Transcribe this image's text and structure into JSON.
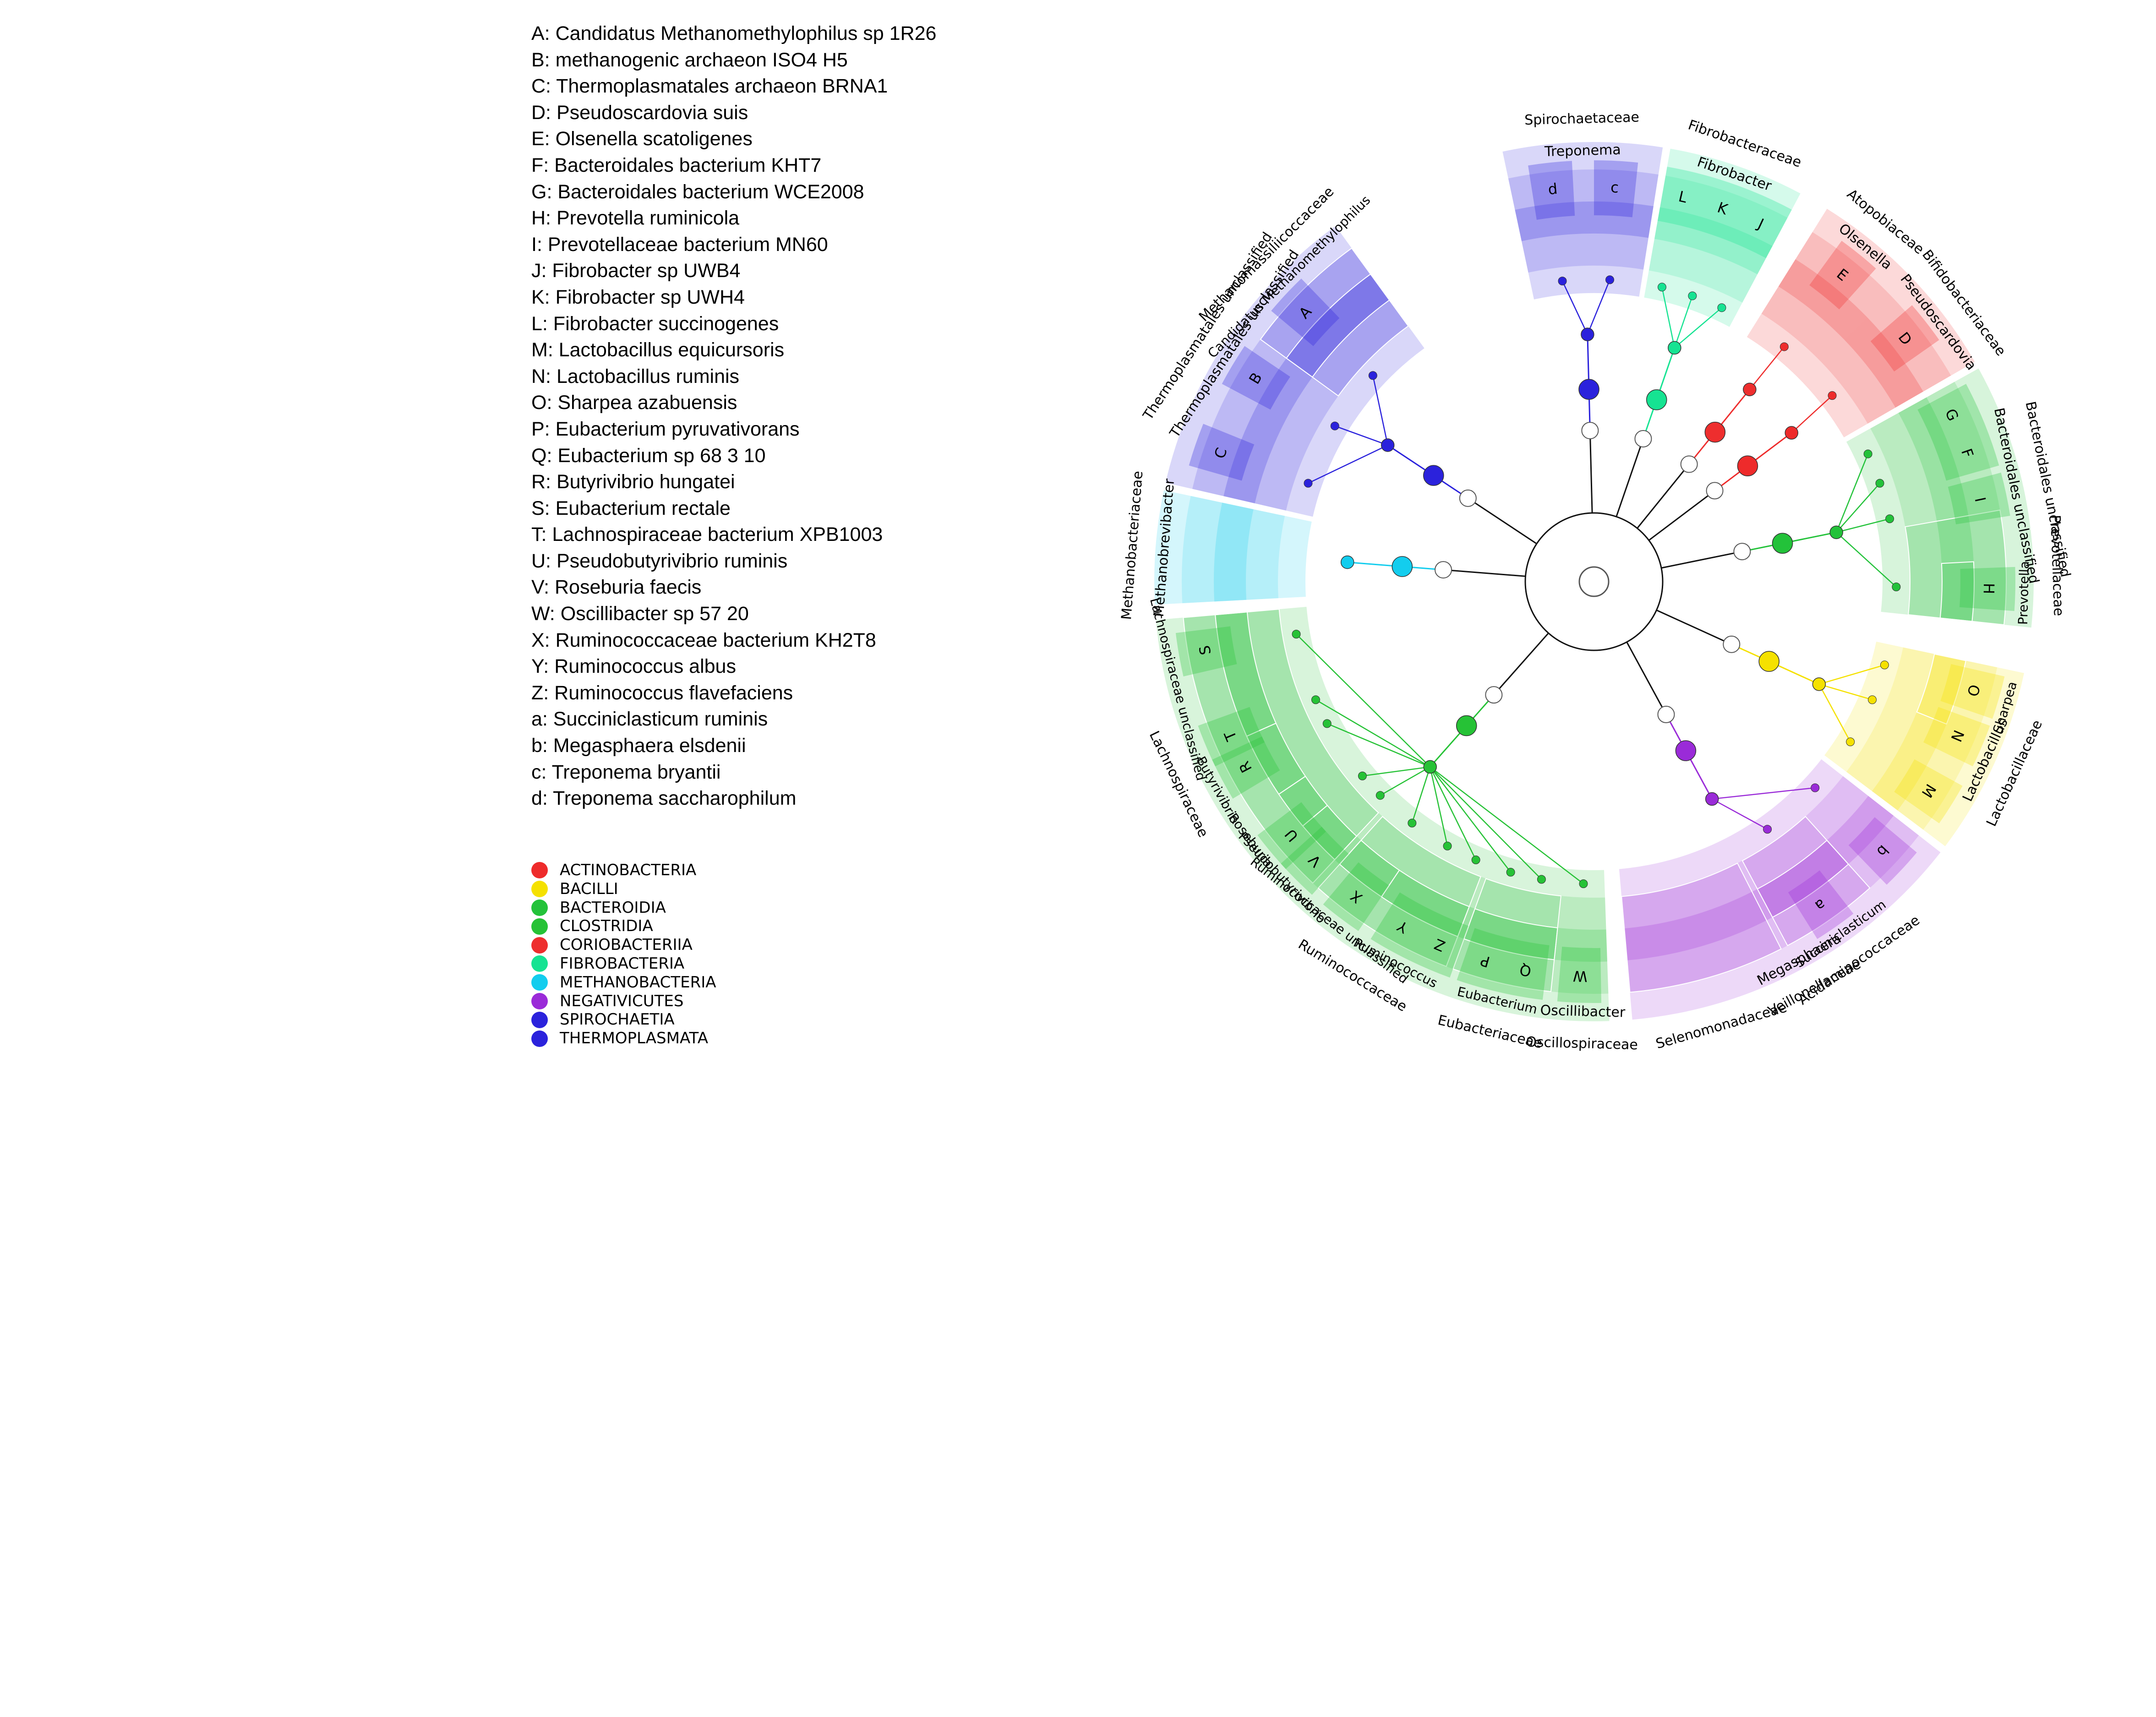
{
  "species_legend": [
    "A: Candidatus Methanomethylophilus sp 1R26",
    "B: methanogenic archaeon ISO4 H5",
    "C: Thermoplasmatales archaeon BRNA1",
    "D: Pseudoscardovia suis",
    "E: Olsenella scatoligenes",
    "F: Bacteroidales bacterium KHT7",
    "G: Bacteroidales bacterium WCE2008",
    "H: Prevotella ruminicola",
    "I: Prevotellaceae bacterium MN60",
    "J: Fibrobacter sp UWB4",
    "K: Fibrobacter sp UWH4",
    "L: Fibrobacter succinogenes",
    "M: Lactobacillus equicursoris",
    "N: Lactobacillus ruminis",
    "O: Sharpea azabuensis",
    "P: Eubacterium pyruvativorans",
    "Q: Eubacterium sp 68 3 10",
    "R: Butyrivibrio hungatei",
    "S: Eubacterium rectale",
    "T: Lachnospiraceae bacterium XPB1003",
    "U: Pseudobutyrivibrio ruminis",
    "V: Roseburia faecis",
    "W: Oscillibacter sp 57 20",
    "X: Ruminococcaceae bacterium KH2T8",
    "Y: Ruminococcus albus",
    "Z: Ruminococcus flavefaciens",
    "a: Succiniclasticum ruminis",
    "b: Megasphaera elsdenii",
    "c: Treponema bryantii",
    "d: Treponema saccharophilum"
  ],
  "class_legend": [
    {
      "name": "ACTINOBACTERIA",
      "color": "#ee2b2b"
    },
    {
      "name": "BACILLI",
      "color": "#f5e100"
    },
    {
      "name": "BACTEROIDIA",
      "color": "#23c23a"
    },
    {
      "name": "CLOSTRIDIA",
      "color": "#26c236"
    },
    {
      "name": "CORIOBACTERIIA",
      "color": "#ee2e2e"
    },
    {
      "name": "FIBROBACTERIA",
      "color": "#16e392"
    },
    {
      "name": "METHANOBACTERIA",
      "color": "#13cdee"
    },
    {
      "name": "NEGATIVICUTES",
      "color": "#9a2bd8"
    },
    {
      "name": "SPIROCHAETIA",
      "color": "#2b22dc"
    },
    {
      "name": "THERMOPLASMATA",
      "color": "#2b22dc"
    }
  ],
  "clades": [
    {
      "id": "methanobacteria",
      "class_color": "#13cdee",
      "start": 177,
      "end": 192,
      "family": {
        "label": "Methanobacteriaceae"
      },
      "genus": {
        "label": "Methanobrevibacter"
      }
    },
    {
      "id": "thermoplasmata",
      "class_color": "#2b22dc",
      "start": 193,
      "end": 234,
      "family": {
        "label": "Thermoplasmatales unclassified"
      },
      "genus": {
        "label": "Thermoplasmatales unclassified"
      },
      "family2": {
        "label": "Methanomassiliicoccaceae",
        "start": 216,
        "end": 234
      },
      "genus2": {
        "label": "Candidatus Methanomethylophilus",
        "start": 216,
        "end": 234
      },
      "leaves": [
        {
          "letter": "C",
          "angle": 199
        },
        {
          "letter": "B",
          "angle": 211
        },
        {
          "letter": "A",
          "angle": 223
        }
      ]
    },
    {
      "id": "spirochaetia",
      "class_color": "#2b22dc",
      "start": 258,
      "end": 279,
      "family": {
        "label": "Spirochaetaceae"
      },
      "genus": {
        "label": "Treponema"
      },
      "leaves": [
        {
          "letter": "d",
          "angle": 264
        },
        {
          "letter": "c",
          "angle": 273
        }
      ]
    },
    {
      "id": "fibrobacteria",
      "class_color": "#16e392",
      "start": 280,
      "end": 298,
      "family": {
        "label": "Fibrobacteraceae"
      },
      "genus": {
        "label": "Fibrobacter"
      },
      "leaves": [
        {
          "letter": "L",
          "angle": 283
        },
        {
          "letter": "K",
          "angle": 289
        },
        {
          "letter": "J",
          "angle": 295
        }
      ]
    },
    {
      "id": "coriobacteriia",
      "class_color": "#ee2e2e",
      "start": 302,
      "end": 316,
      "family": {
        "label": "Atopobiaceae"
      },
      "genus": {
        "label": "Olsenella"
      },
      "leaves": [
        {
          "letter": "E",
          "angle": 309
        }
      ]
    },
    {
      "id": "actinobacteria",
      "class_color": "#ee2b2b",
      "start": 316,
      "end": 330,
      "family": {
        "label": "Bifidobacteriaceae"
      },
      "genus": {
        "label": "Pseudoscardovia"
      },
      "leaves": [
        {
          "letter": "D",
          "angle": 322
        }
      ]
    },
    {
      "id": "bacteroidia",
      "class_color": "#23c23a",
      "start": 331,
      "end": 366,
      "family": {
        "label": "Bacteroidales unclassified"
      },
      "genus": {
        "label": "Bacteroidales unclassified"
      },
      "family2": {
        "label": "Prevotellaceae",
        "start": 350,
        "end": 366
      },
      "genus2": {
        "label": "Prevotella",
        "start": 357,
        "end": 366
      },
      "leaves": [
        {
          "letter": "G",
          "angle": 335
        },
        {
          "letter": "F",
          "angle": 341
        },
        {
          "letter": "I",
          "angle": 348
        },
        {
          "letter": "H",
          "angle": 361
        }
      ]
    },
    {
      "id": "bacilli",
      "class_color": "#f5e100",
      "start": 12,
      "end": 37,
      "family": {
        "label": "Lactobacillaceae"
      },
      "genus": {
        "label": "Lactobacillus"
      },
      "genus2": {
        "label": "Sharpea",
        "start": 12,
        "end": 22
      },
      "leaves": [
        {
          "letter": "O",
          "angle": 16
        },
        {
          "letter": "N",
          "angle": 23
        },
        {
          "letter": "M",
          "angle": 32
        }
      ]
    },
    {
      "id": "negativicutes",
      "class_color": "#9a2bd8",
      "start": 38,
      "end": 85,
      "family": {
        "label": "Veillonellaceae"
      },
      "genus": {
        "label": "Megasphaera"
      },
      "family2": {
        "label": "Acidaminococcaceae",
        "start": 48,
        "end": 62
      },
      "genus2": {
        "label": "Succiniclasticum",
        "start": 48,
        "end": 62
      },
      "family3": {
        "label": "Selenomonadaceae",
        "start": 63,
        "end": 85
      },
      "leaves": [
        {
          "letter": "b",
          "angle": 43
        },
        {
          "letter": "a",
          "angle": 55
        }
      ]
    },
    {
      "id": "clostridia",
      "class_color": "#26c236",
      "start": 88,
      "end": 175,
      "family": {
        "label": "Oscillospiraceae",
        "start": 88,
        "end": 95
      },
      "genus": {
        "label": "Oscillibacter",
        "start": 88,
        "end": 95
      },
      "family2": {
        "label": "Eubacteriaceae",
        "start": 96,
        "end": 110
      },
      "genus2": {
        "label": "Eubacterium",
        "start": 96,
        "end": 110
      },
      "family3": {
        "label": "Ruminococcaceae",
        "start": 111,
        "end": 132
      },
      "genus3": {
        "label": "Ruminococcus",
        "start": 111,
        "end": 124
      },
      "genus3b": {
        "label": "Ruminococcaceae unclassified",
        "start": 124,
        "end": 132
      },
      "family4": {
        "label": "Lachnospiraceae",
        "start": 133,
        "end": 175
      },
      "genus4": {
        "label": "Pseudobutyrivibrio",
        "start": 133,
        "end": 140
      },
      "genus4b": {
        "label": "Roseburia",
        "start": 140,
        "end": 146
      },
      "genus4c": {
        "label": "Butyrivibrio",
        "start": 146,
        "end": 156
      },
      "genus4d": {
        "label": "Lachnospiraceae unclassified",
        "start": 156,
        "end": 175
      },
      "leaves": [
        {
          "letter": "W",
          "angle": 92
        },
        {
          "letter": "Q",
          "angle": 100
        },
        {
          "letter": "P",
          "angle": 106
        },
        {
          "letter": "Z",
          "angle": 113
        },
        {
          "letter": "Y",
          "angle": 119
        },
        {
          "letter": "X",
          "angle": 127
        },
        {
          "letter": "V",
          "angle": 135
        },
        {
          "letter": "U",
          "angle": 140
        },
        {
          "letter": "R",
          "angle": 152
        },
        {
          "letter": "T",
          "angle": 157
        },
        {
          "letter": "S",
          "angle": 170
        }
      ]
    }
  ]
}
